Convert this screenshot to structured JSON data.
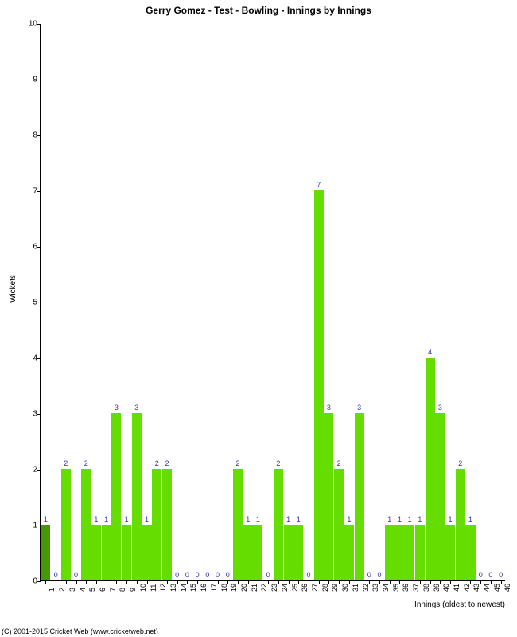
{
  "chart": {
    "type": "bar",
    "title": "Gerry Gomez - Test - Bowling - Innings by Innings",
    "ylabel": "Wickets",
    "xlabel": "Innings (oldest to newest)",
    "ylim": [
      0,
      10
    ],
    "ytick_step": 1,
    "background_color": "#ffffff",
    "bar_color": "#66dd00",
    "first_bar_color": "#449900",
    "value_label_color": "#3333aa",
    "axis_color": "#000000",
    "title_fontsize": 12,
    "label_fontsize": 10,
    "tick_fontsize": 9,
    "bar_width_ratio": 0.95,
    "categories": [
      "1",
      "2",
      "3",
      "4",
      "5",
      "6",
      "7",
      "8",
      "9",
      "10",
      "11",
      "12",
      "13",
      "14",
      "15",
      "16",
      "17",
      "18",
      "19",
      "20",
      "21",
      "22",
      "23",
      "24",
      "25",
      "26",
      "27",
      "28",
      "29",
      "30",
      "31",
      "32",
      "33",
      "34",
      "35",
      "36",
      "37",
      "38",
      "39",
      "40",
      "41",
      "42",
      "43",
      "44",
      "45",
      "46"
    ],
    "values": [
      1,
      0,
      2,
      0,
      2,
      1,
      1,
      3,
      1,
      3,
      1,
      2,
      2,
      0,
      0,
      0,
      0,
      0,
      0,
      2,
      1,
      1,
      0,
      2,
      1,
      1,
      0,
      7,
      3,
      2,
      1,
      3,
      0,
      0,
      1,
      1,
      1,
      1,
      4,
      3,
      1,
      2,
      1,
      0,
      0,
      0
    ]
  },
  "footer": "(C) 2001-2015 Cricket Web (www.cricketweb.net)"
}
